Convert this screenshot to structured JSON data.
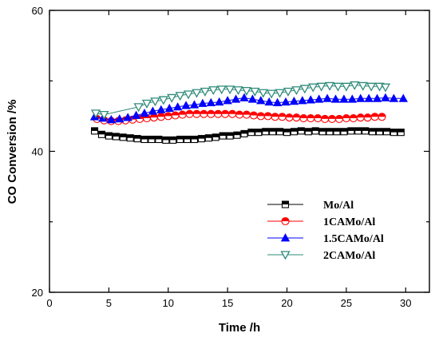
{
  "chart_data": {
    "type": "line",
    "title": "",
    "xlabel": "Time /h",
    "ylabel": "CO Conversion /%",
    "xlim": [
      0,
      32
    ],
    "ylim": [
      20,
      60
    ],
    "x_major_ticks": [
      0,
      5,
      10,
      15,
      20,
      25,
      30
    ],
    "x_tick_labels": [
      "0",
      "5",
      "10",
      "15",
      "20",
      "25",
      "30"
    ],
    "y_major_ticks": [
      20,
      40,
      60
    ],
    "y_tick_labels": [
      "20",
      "40",
      "60"
    ],
    "y_minor_ticks": [
      30,
      50
    ],
    "grid": false,
    "legend_position": "lower-right",
    "series": [
      {
        "name": "Mo/Al",
        "color": "#000000",
        "marker": "square",
        "x": [
          3.8,
          4.4,
          5.0,
          5.6,
          6.2,
          6.8,
          7.4,
          8.0,
          8.6,
          9.2,
          9.8,
          10.4,
          11.0,
          11.6,
          12.2,
          12.8,
          13.4,
          14.0,
          14.6,
          15.2,
          15.8,
          16.4,
          17.0,
          17.6,
          18.2,
          18.8,
          19.4,
          20.0,
          20.6,
          21.2,
          21.8,
          22.4,
          23.0,
          23.6,
          24.2,
          24.8,
          25.4,
          26.0,
          26.6,
          27.2,
          27.8,
          28.4,
          29.0,
          29.6
        ],
        "y": [
          42.9,
          42.4,
          42.2,
          42.1,
          42.0,
          41.9,
          41.8,
          41.7,
          41.7,
          41.7,
          41.6,
          41.6,
          41.7,
          41.7,
          41.7,
          41.8,
          41.9,
          42.0,
          42.2,
          42.2,
          42.3,
          42.5,
          42.7,
          42.7,
          42.8,
          42.8,
          42.8,
          42.7,
          42.8,
          42.9,
          42.8,
          42.9,
          42.8,
          42.8,
          42.8,
          42.8,
          42.9,
          42.9,
          42.9,
          42.8,
          42.8,
          42.8,
          42.7,
          42.7
        ]
      },
      {
        "name": "1CAMo/Al",
        "color": "#ff0000",
        "marker": "circle",
        "x": [
          4.0,
          4.6,
          5.2,
          5.8,
          6.4,
          7.0,
          7.6,
          8.2,
          8.8,
          9.4,
          10.0,
          10.6,
          11.2,
          11.8,
          12.4,
          13.0,
          13.6,
          14.2,
          14.8,
          15.4,
          16.0,
          16.6,
          17.2,
          17.8,
          18.4,
          19.0,
          19.6,
          20.2,
          20.8,
          21.4,
          22.0,
          22.6,
          23.2,
          23.8,
          24.4,
          25.0,
          25.6,
          26.2,
          26.8,
          27.4,
          28.0
        ],
        "y": [
          44.6,
          44.4,
          44.3,
          44.3,
          44.4,
          44.5,
          44.6,
          44.7,
          44.8,
          44.9,
          45.0,
          45.1,
          45.2,
          45.3,
          45.3,
          45.3,
          45.3,
          45.3,
          45.3,
          45.3,
          45.2,
          45.2,
          45.1,
          45.0,
          45.0,
          44.9,
          44.9,
          44.8,
          44.8,
          44.7,
          44.7,
          44.7,
          44.6,
          44.6,
          44.6,
          44.7,
          44.7,
          44.8,
          44.8,
          44.9,
          44.9
        ]
      },
      {
        "name": "1.5CAMo/Al",
        "color": "#0000ff",
        "marker": "triangle-up",
        "x": [
          3.8,
          4.5,
          5.2,
          5.9,
          6.6,
          7.3,
          8.0,
          8.7,
          9.4,
          10.1,
          10.8,
          11.5,
          12.2,
          12.9,
          13.6,
          14.3,
          15.0,
          15.7,
          16.4,
          17.1,
          17.8,
          18.5,
          19.2,
          19.9,
          20.6,
          21.3,
          22.0,
          22.7,
          23.4,
          24.1,
          24.8,
          25.5,
          26.2,
          26.9,
          27.6,
          28.3,
          29.0,
          29.8
        ],
        "y": [
          44.9,
          44.7,
          44.5,
          44.6,
          44.8,
          45.1,
          45.4,
          45.7,
          45.9,
          46.1,
          46.3,
          46.5,
          46.6,
          46.8,
          46.9,
          47.0,
          47.2,
          47.4,
          47.6,
          47.4,
          47.2,
          47.0,
          46.9,
          47.0,
          47.1,
          47.2,
          47.3,
          47.4,
          47.5,
          47.4,
          47.4,
          47.4,
          47.5,
          47.5,
          47.5,
          47.6,
          47.5,
          47.5
        ]
      },
      {
        "name": "2CAMo/Al",
        "color": "#2e8b7a",
        "marker": "triangle-down",
        "x": [
          3.9,
          4.6,
          7.5,
          8.2,
          8.9,
          9.6,
          10.3,
          11.0,
          11.7,
          12.4,
          13.1,
          13.8,
          14.5,
          15.2,
          15.9,
          16.6,
          17.3,
          18.0,
          18.7,
          19.4,
          20.1,
          20.8,
          21.5,
          22.2,
          22.9,
          23.6,
          24.3,
          25.0,
          25.7,
          26.4,
          27.1,
          27.8,
          28.3
        ],
        "y": [
          45.4,
          45.2,
          46.3,
          46.8,
          47.1,
          47.3,
          47.6,
          47.9,
          48.1,
          48.3,
          48.5,
          48.7,
          48.8,
          48.8,
          48.7,
          48.6,
          48.5,
          48.3,
          48.2,
          48.3,
          48.5,
          48.7,
          48.9,
          49.1,
          49.2,
          49.3,
          49.2,
          49.2,
          49.4,
          49.3,
          49.2,
          49.2,
          49.1
        ]
      }
    ]
  }
}
